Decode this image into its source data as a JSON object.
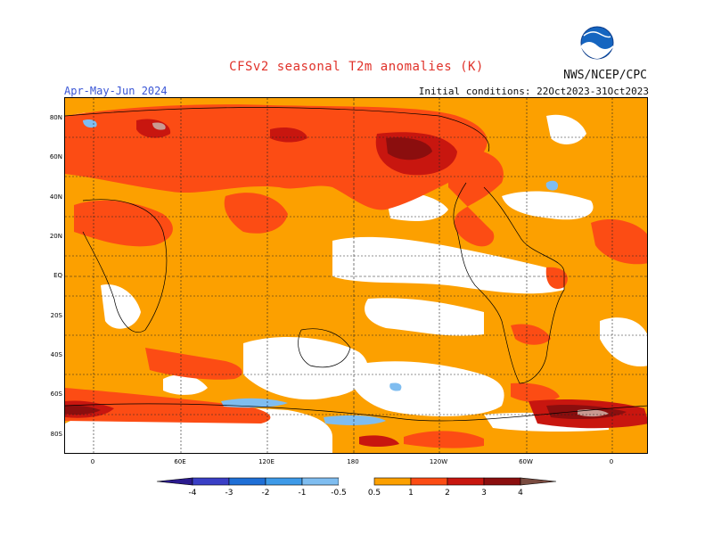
{
  "title": "CFSv2 seasonal T2m anomalies (K)",
  "organization": "NWS/NCEP/CPC",
  "logo_text": "NOAA",
  "period": "Apr-May-Jun 2024",
  "initial_conditions": "Initial conditions: 22Oct2023-31Oct2023",
  "lat_labels": [
    "80N",
    "60N",
    "40N",
    "20N",
    "EQ",
    "20S",
    "40S",
    "60S",
    "80S"
  ],
  "lon_labels": [
    "0",
    "60E",
    "120E",
    "180",
    "120W",
    "60W",
    "0"
  ],
  "legend": {
    "labels": [
      "-4",
      "-3",
      "-2",
      "-1",
      "-0.5",
      "0.5",
      "1",
      "2",
      "3",
      "4"
    ],
    "colors": {
      "lt_m4": "#2b1a8e",
      "m4_m3": "#3a3fc6",
      "m3_m2": "#1f6fd6",
      "m2_m1": "#3d9ae8",
      "m1_m05": "#7fbdf0",
      "neutral": "#ffffff",
      "p05_p1": "#fca000",
      "p1_p2": "#fc4c14",
      "p2_p3": "#c8160f",
      "p3_p4": "#8b0e0e",
      "p4_p5": "#c99a92",
      "gt_p5": "#7a4b40"
    }
  }
}
